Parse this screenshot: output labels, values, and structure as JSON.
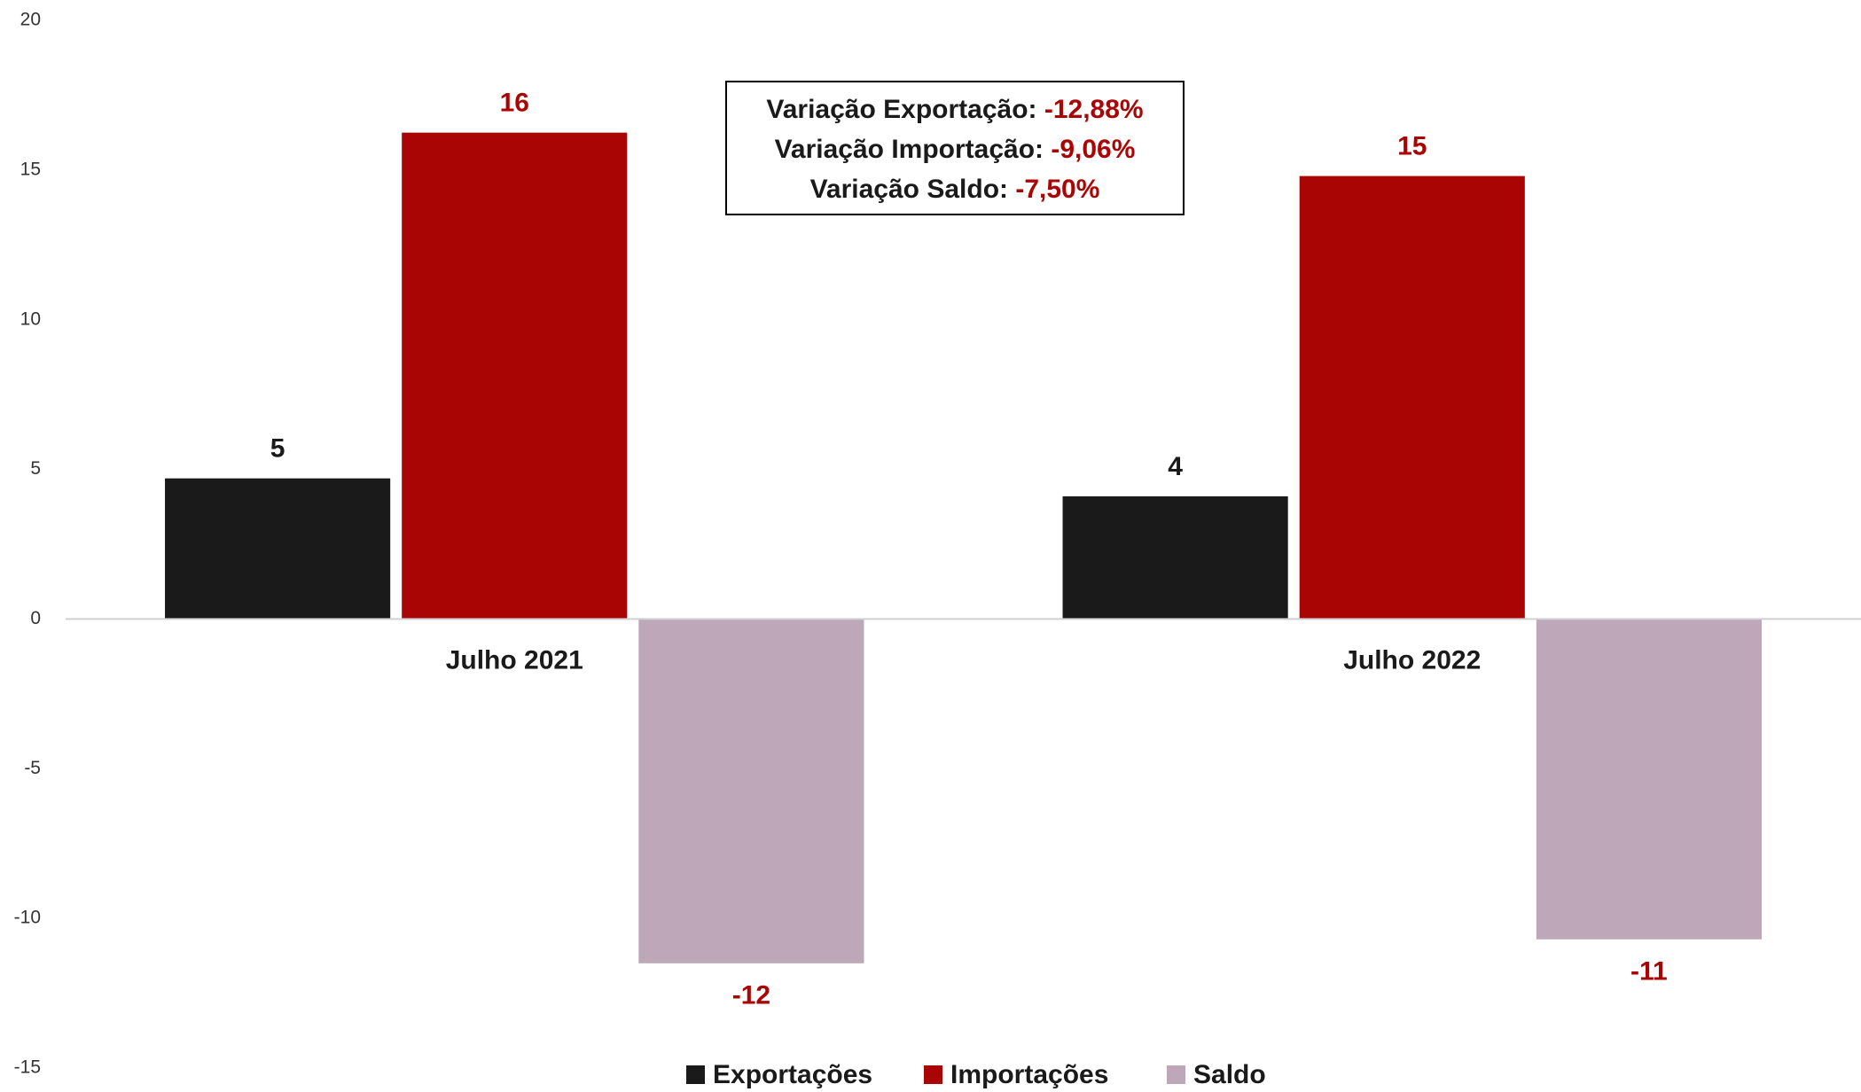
{
  "chart_data": {
    "type": "bar",
    "categories": [
      "Julho 2021",
      "Julho 2022"
    ],
    "series": [
      {
        "name": "Exportações",
        "color": "#1a1a1a",
        "label_color": "#1a1a1a",
        "values": [
          4.7,
          4.1
        ],
        "value_labels": [
          "5",
          "4"
        ]
      },
      {
        "name": "Importações",
        "color": "#aa0505",
        "label_color": "#aa0505",
        "values": [
          16.25,
          14.8
        ],
        "value_labels": [
          "16",
          "15"
        ]
      },
      {
        "name": "Saldo",
        "color": "#bda7b8",
        "label_color": "#aa0505",
        "values": [
          -11.5,
          -10.7
        ],
        "value_labels": [
          "-12",
          "-11"
        ]
      }
    ],
    "ylim": [
      -15,
      20
    ],
    "yticks": [
      -15,
      -10,
      -5,
      0,
      5,
      10,
      15,
      20
    ],
    "legend": "bottom",
    "annotations": [
      {
        "label": "Variação Exportação:",
        "value": "-12,88%"
      },
      {
        "label": "Variação Importação:",
        "value": "-9,06%"
      },
      {
        "label": "Variação Saldo:",
        "value": "-7,50%"
      }
    ]
  }
}
